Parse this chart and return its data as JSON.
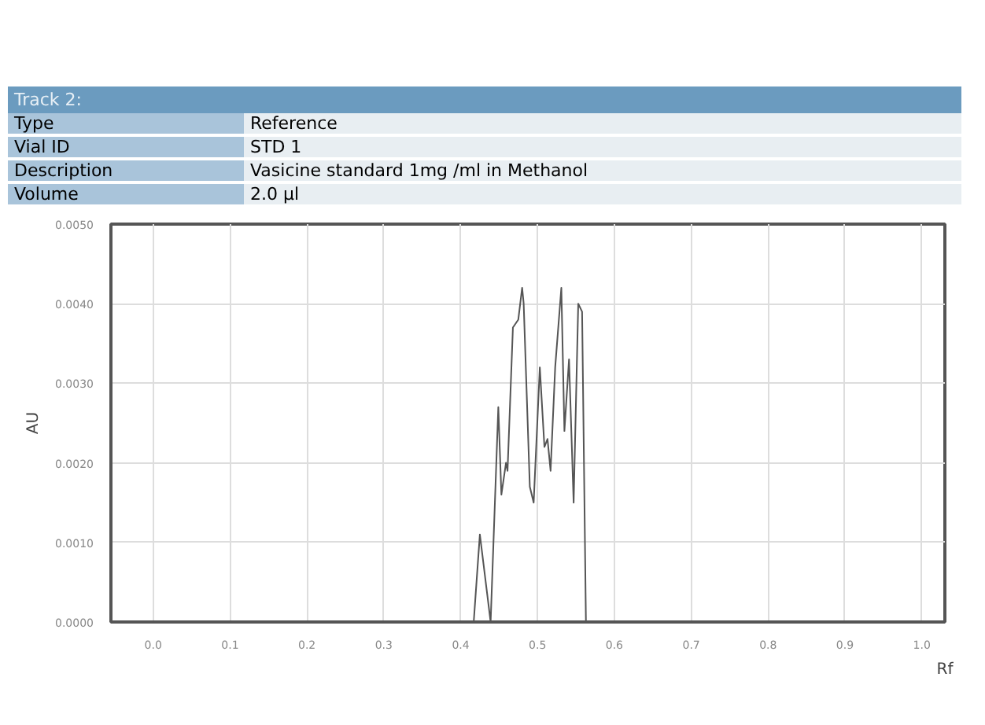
{
  "chart_data": {
    "type": "line",
    "title": "Track 2:",
    "annotations": [
      "Type",
      "Reference",
      "Vial ID",
      "STD 1",
      "Description",
      "Vasicine standard 1mg /ml in Methanol",
      "Volume",
      "2.0 µl"
    ],
    "xlabel": "Rf",
    "ylabel": "AU",
    "x": [
      0.417,
      0.425,
      0.439,
      0.449,
      0.453,
      0.459,
      0.461,
      0.468,
      0.475,
      0.48,
      0.482,
      0.49,
      0.495,
      0.503,
      0.509,
      0.513,
      0.517,
      0.523,
      0.531,
      0.535,
      0.541,
      0.547,
      0.553,
      0.558,
      0.563
    ],
    "series": [
      {
        "color": "#555555",
        "values": [
          0,
          0.0011,
          0,
          0.0027,
          0.0016,
          0.002,
          0.0019,
          0.0037,
          0.0038,
          0.0042,
          0.004,
          0.0017,
          0.0015,
          0.0032,
          0.0022,
          0.0023,
          0.0019,
          0.0032,
          0.0042,
          0.0024,
          0.0033,
          0.0015,
          0.004,
          0.0039,
          0
        ]
      }
    ],
    "xlim": [
      -0.055,
      1.03
    ],
    "ylim": [
      0,
      0.005
    ],
    "xticks": [
      {
        "value": 0,
        "label": "0.0"
      },
      {
        "value": 0.1,
        "label": "0.1"
      },
      {
        "value": 0.2,
        "label": "0.2"
      },
      {
        "value": 0.3,
        "label": "0.3"
      },
      {
        "value": 0.4,
        "label": "0.4"
      },
      {
        "value": 0.5,
        "label": "0.5"
      },
      {
        "value": 0.6,
        "label": "0.6"
      },
      {
        "value": 0.7,
        "label": "0.7"
      },
      {
        "value": 0.8,
        "label": "0.8"
      },
      {
        "value": 0.9,
        "label": "0.9"
      },
      {
        "value": 1,
        "label": "1.0"
      }
    ],
    "yticks": [
      {
        "value": 0,
        "label": "0.0000"
      },
      {
        "value": 0.001,
        "label": "0.0010"
      },
      {
        "value": 0.002,
        "label": "0.0020"
      },
      {
        "value": 0.003,
        "label": "0.0030"
      },
      {
        "value": 0.004,
        "label": "0.0040"
      },
      {
        "value": 0.005,
        "label": "0.0050"
      }
    ],
    "grid": true
  }
}
